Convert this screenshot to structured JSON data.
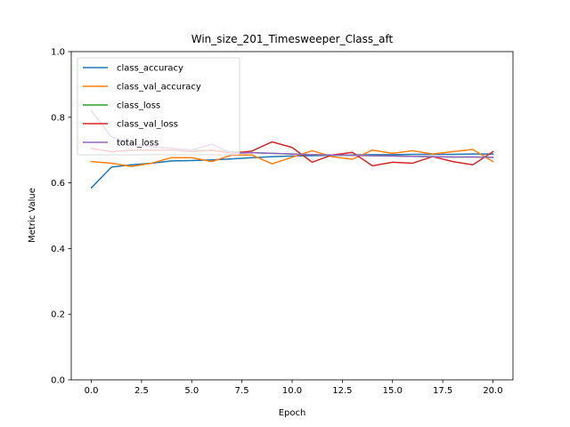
{
  "chart_data": {
    "type": "line",
    "title": "Win_size_201_Timesweeper_Class_aft",
    "xlabel": "Epoch",
    "ylabel": "Metric Value",
    "xlim": [
      -1,
      21
    ],
    "ylim": [
      0.0,
      1.0
    ],
    "xticks": [
      0.0,
      2.5,
      5.0,
      7.5,
      10.0,
      12.5,
      15.0,
      17.5,
      20.0
    ],
    "xtick_labels": [
      "0.0",
      "2.5",
      "5.0",
      "7.5",
      "10.0",
      "12.5",
      "15.0",
      "17.5",
      "20.0"
    ],
    "yticks": [
      0.0,
      0.2,
      0.4,
      0.6,
      0.8,
      1.0
    ],
    "ytick_labels": [
      "0.0",
      "0.2",
      "0.4",
      "0.6",
      "0.8",
      "1.0"
    ],
    "grid": false,
    "legend_position": "upper-left",
    "x": [
      0,
      1,
      2,
      3,
      4,
      5,
      6,
      7,
      8,
      9,
      10,
      11,
      12,
      13,
      14,
      15,
      16,
      17,
      18,
      19,
      20
    ],
    "series": [
      {
        "name": "class_accuracy",
        "color": "#1f77b4",
        "values": [
          0.585,
          0.648,
          0.655,
          0.66,
          0.667,
          0.668,
          0.67,
          0.673,
          0.677,
          0.68,
          0.682,
          0.683,
          0.684,
          0.685,
          0.686,
          0.686,
          0.687,
          0.687,
          0.687,
          0.688,
          0.688
        ]
      },
      {
        "name": "class_val_accuracy",
        "color": "#ff7f0e",
        "values": [
          0.665,
          0.66,
          0.65,
          0.66,
          0.677,
          0.677,
          0.665,
          0.685,
          0.685,
          0.658,
          0.678,
          0.698,
          0.68,
          0.672,
          0.7,
          0.69,
          0.698,
          0.688,
          0.695,
          0.702,
          0.665
        ]
      },
      {
        "name": "class_loss",
        "color": "#2ca02c",
        "values": [
          0.82,
          0.74,
          0.72,
          0.71,
          0.705,
          0.7,
          0.698,
          0.695,
          0.692,
          0.69,
          0.688,
          0.686,
          0.685,
          0.684,
          0.683,
          0.682,
          0.681,
          0.68,
          0.679,
          0.679,
          0.678
        ]
      },
      {
        "name": "class_val_loss",
        "color": "#d62728",
        "values": [
          0.705,
          0.695,
          0.7,
          0.7,
          0.7,
          0.695,
          0.7,
          0.69,
          0.697,
          0.725,
          0.708,
          0.663,
          0.685,
          0.693,
          0.652,
          0.663,
          0.66,
          0.68,
          0.665,
          0.655,
          0.695
        ]
      },
      {
        "name": "total_loss",
        "color": "#9467bd",
        "values": [
          0.82,
          0.74,
          0.72,
          0.71,
          0.705,
          0.7,
          0.718,
          0.69,
          0.692,
          0.69,
          0.688,
          0.686,
          0.685,
          0.684,
          0.683,
          0.682,
          0.681,
          0.68,
          0.679,
          0.679,
          0.678
        ]
      }
    ]
  }
}
